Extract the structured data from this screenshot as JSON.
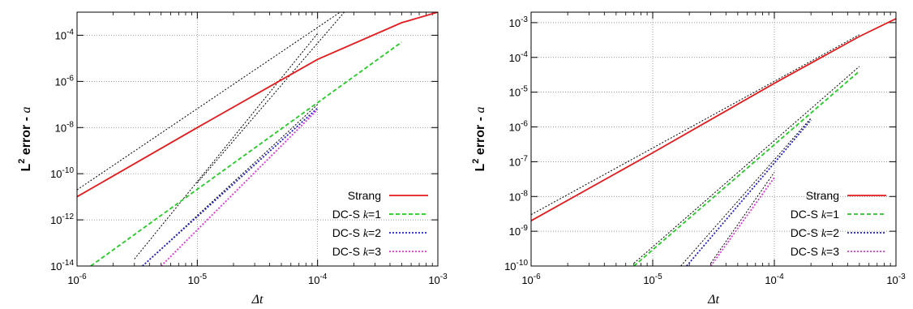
{
  "chart_data": [
    {
      "type": "line",
      "xscale": "log",
      "yscale": "log",
      "xlim": [
        1e-06,
        0.001
      ],
      "ylim": [
        1e-14,
        0.001
      ],
      "xlabel": "Δt",
      "ylabel_main": "L",
      "ylabel_sup": "2",
      "ylabel_rest": " error - ",
      "ylabel_var": "a",
      "xticks": [
        1e-06,
        1e-05,
        0.0001,
        0.001
      ],
      "xtick_labels": [
        {
          "base": "10",
          "exp": "-6"
        },
        {
          "base": "10",
          "exp": "-5"
        },
        {
          "base": "10",
          "exp": "-4"
        },
        {
          "base": "10",
          "exp": "-3"
        }
      ],
      "yticks": [
        1e-14,
        1e-12,
        1e-10,
        1e-08,
        1e-06,
        0.0001
      ],
      "ytick_labels": [
        {
          "base": "10",
          "exp": "-14"
        },
        {
          "base": "10",
          "exp": "-12"
        },
        {
          "base": "10",
          "exp": "-10"
        },
        {
          "base": "10",
          "exp": "-8"
        },
        {
          "base": "10",
          "exp": "-6"
        },
        {
          "base": "10",
          "exp": "-4"
        }
      ],
      "grid": true,
      "legend_position": "bottom-right",
      "series": [
        {
          "name": "Strang",
          "name_var": "",
          "name_suffix": "",
          "color": "#e41a1c",
          "style": "solid",
          "x": [
            1e-06,
            1e-05,
            0.0001,
            0.0005,
            0.001
          ],
          "y": [
            1e-11,
            1e-08,
            9e-06,
            0.00035,
            0.001
          ]
        },
        {
          "name": "DC-S ",
          "name_var": "k",
          "name_suffix": "=1",
          "color": "#22cc22",
          "style": "dashed",
          "x": [
            1.3e-06,
            0.0005
          ],
          "y": [
            1e-14,
            5e-05
          ]
        },
        {
          "name": "DC-S ",
          "name_var": "k",
          "name_suffix": "=2",
          "color": "#1f1fd0",
          "style": "dotted",
          "x": [
            3.5e-06,
            0.0001
          ],
          "y": [
            1e-14,
            7e-08
          ]
        },
        {
          "name": "DC-S ",
          "name_var": "k",
          "name_suffix": "=3",
          "color": "#dd33dd",
          "style": "dotted",
          "x": [
            5e-06,
            0.0001
          ],
          "y": [
            1e-14,
            6e-08
          ]
        }
      ],
      "reference_lines": [
        {
          "x": [
            1e-06,
            0.0002
          ],
          "y": [
            2e-11,
            0.0025
          ],
          "color": "#000000",
          "style": "dotted"
        },
        {
          "x": [
            1e-05,
            0.0002
          ],
          "y": [
            4e-11,
            0.003
          ],
          "color": "#000000",
          "style": "dotted"
        },
        {
          "x": [
            3e-06,
            0.0001
          ],
          "y": [
            2e-14,
            0.00012
          ],
          "color": "#000000",
          "style": "dotted"
        },
        {
          "x": [
            3.5e-06,
            0.0001
          ],
          "y": [
            1e-14,
            1e-07
          ],
          "color": "#000000",
          "style": "dotted"
        }
      ]
    },
    {
      "type": "line",
      "xscale": "log",
      "yscale": "log",
      "xlim": [
        1e-06,
        0.001
      ],
      "ylim": [
        1e-10,
        0.002
      ],
      "xlabel": "Δt",
      "ylabel_main": "L",
      "ylabel_sup": "2",
      "ylabel_rest": " error - ",
      "ylabel_var": "a",
      "xticks": [
        1e-06,
        1e-05,
        0.0001,
        0.001
      ],
      "xtick_labels": [
        {
          "base": "10",
          "exp": "-6"
        },
        {
          "base": "10",
          "exp": "-5"
        },
        {
          "base": "10",
          "exp": "-4"
        },
        {
          "base": "10",
          "exp": "-3"
        }
      ],
      "yticks": [
        1e-10,
        1e-09,
        1e-08,
        1e-07,
        1e-06,
        1e-05,
        0.0001,
        0.001
      ],
      "ytick_labels": [
        {
          "base": "10",
          "exp": "-10"
        },
        {
          "base": "10",
          "exp": "-9"
        },
        {
          "base": "10",
          "exp": "-8"
        },
        {
          "base": "10",
          "exp": "-7"
        },
        {
          "base": "10",
          "exp": "-6"
        },
        {
          "base": "10",
          "exp": "-5"
        },
        {
          "base": "10",
          "exp": "-4"
        },
        {
          "base": "10",
          "exp": "-3"
        }
      ],
      "grid": true,
      "legend_position": "bottom-right",
      "series": [
        {
          "name": "Strang",
          "name_var": "",
          "name_suffix": "",
          "color": "#e41a1c",
          "style": "solid",
          "x": [
            1e-06,
            1e-05,
            0.0001,
            0.0005,
            0.001
          ],
          "y": [
            2e-09,
            1.8e-07,
            1.8e-05,
            0.0004,
            0.0013
          ]
        },
        {
          "name": "DC-S ",
          "name_var": "k",
          "name_suffix": "=1",
          "color": "#22cc22",
          "style": "dashed",
          "x": [
            7e-06,
            0.0005
          ],
          "y": [
            1e-10,
            4e-05
          ]
        },
        {
          "name": "DC-S ",
          "name_var": "k",
          "name_suffix": "=2",
          "color": "#1f1fd0",
          "style": "dotted",
          "x": [
            1.9e-05,
            0.0002
          ],
          "y": [
            1e-10,
            1.6e-06
          ]
        },
        {
          "name": "DC-S ",
          "name_var": "k",
          "name_suffix": "=3",
          "color": "#dd33dd",
          "style": "dotted",
          "x": [
            3e-05,
            0.0001
          ],
          "y": [
            1e-10,
            3.5e-08
          ]
        }
      ],
      "reference_lines": [
        {
          "x": [
            1e-06,
            0.0005
          ],
          "y": [
            3e-09,
            0.00045
          ],
          "color": "#000000",
          "style": "dotted"
        },
        {
          "x": [
            7e-06,
            0.0005
          ],
          "y": [
            1.2e-10,
            5.5e-05
          ],
          "color": "#000000",
          "style": "dotted"
        },
        {
          "x": [
            1.7e-05,
            0.0002
          ],
          "y": [
            1e-10,
            1.8e-06
          ],
          "color": "#000000",
          "style": "dotted"
        },
        {
          "x": [
            3e-05,
            0.0001
          ],
          "y": [
            1.2e-10,
            5e-08
          ],
          "color": "#000000",
          "style": "dotted"
        }
      ]
    }
  ]
}
